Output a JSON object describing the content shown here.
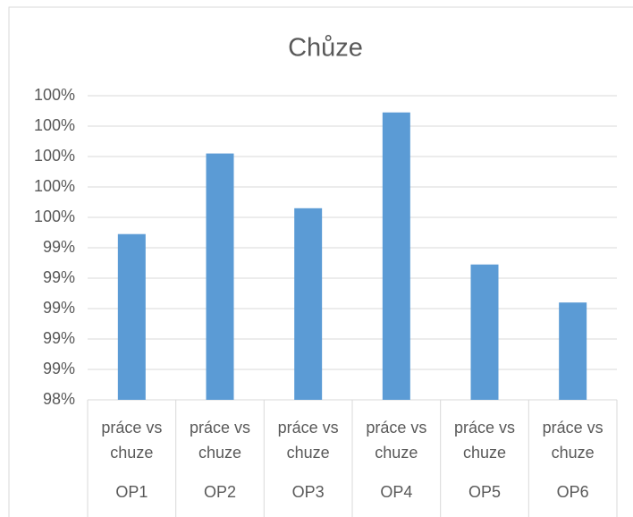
{
  "chart_data": {
    "type": "bar",
    "title": "Chůze",
    "categories": [
      "práce vs chuze",
      "práce vs chuze",
      "práce vs chuze",
      "práce vs chuze",
      "práce vs chuze",
      "práce vs chuze"
    ],
    "groups": [
      "OP1",
      "OP2",
      "OP3",
      "OP4",
      "OP5",
      "OP6"
    ],
    "values": [
      99.49,
      100.02,
      99.66,
      100.29,
      99.29,
      99.04
    ],
    "color": "#5b9bd5",
    "ylim": [
      98.4,
      100.4
    ],
    "yticks": [
      {
        "value": 98.4,
        "label": "98%"
      },
      {
        "value": 98.6,
        "label": "99%"
      },
      {
        "value": 98.8,
        "label": "99%"
      },
      {
        "value": 99.0,
        "label": "99%"
      },
      {
        "value": 99.2,
        "label": "99%"
      },
      {
        "value": 99.4,
        "label": "99%"
      },
      {
        "value": 99.6,
        "label": "100%"
      },
      {
        "value": 99.8,
        "label": "100%"
      },
      {
        "value": 100.0,
        "label": "100%"
      },
      {
        "value": 100.2,
        "label": "100%"
      },
      {
        "value": 100.4,
        "label": "100%"
      }
    ],
    "grid": true
  }
}
